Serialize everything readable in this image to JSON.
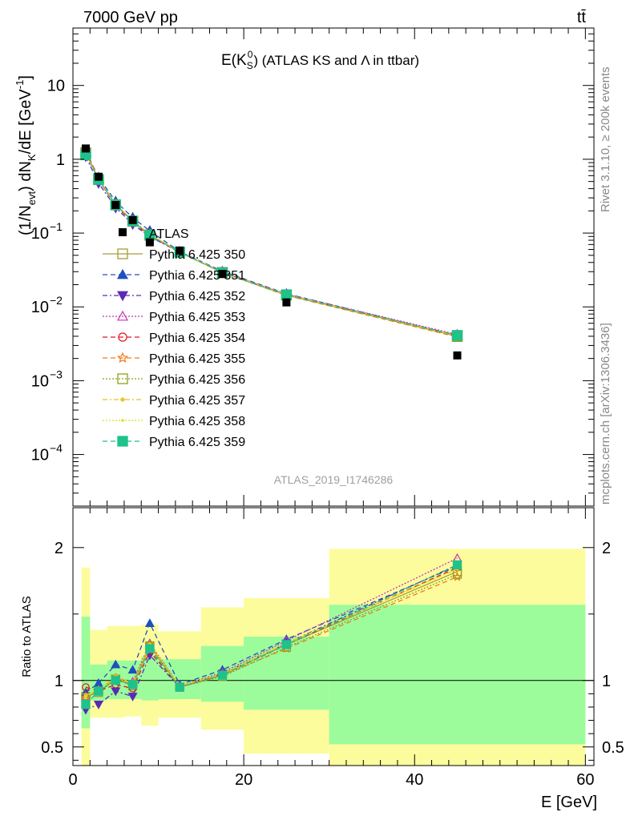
{
  "header": {
    "energy_label": "7000 GeV pp",
    "process_label": "tt̄",
    "side_note_top": "Rivet 3.1.10, ≥ 200k events",
    "side_note_bottom": "mcplots.cern.ch [arXiv:1306.3436]",
    "analysis_id": "ATLAS_2019_I1746286"
  },
  "chart_data": [
    {
      "type": "line",
      "title": "E(K_S^0) (ATLAS KS and Λ in ttbar)",
      "title_parts": {
        "pre": "E(K",
        "sub": "S",
        "sup": "0",
        "post": ") (ATLAS KS and Λ in ttbar)"
      },
      "ylabel": "(1/N_evt) dN_K/dE [GeV^-1]",
      "ylabel_parts": {
        "a": "(1/N",
        "b": "evt",
        "c": ") dN",
        "d": "K",
        "e": "/dE [GeV",
        "f": "-1",
        "g": "]"
      },
      "yscale": "log",
      "ylim": [
        2e-05,
        60
      ],
      "xlim": [
        0,
        61
      ],
      "y_ticks": [
        {
          "value": 10,
          "label": "10"
        },
        {
          "value": 1,
          "label": "1"
        },
        {
          "value": 0.1,
          "base": "10",
          "exp": "−1"
        },
        {
          "value": 0.01,
          "base": "10",
          "exp": "−2"
        },
        {
          "value": 0.001,
          "base": "10",
          "exp": "−3"
        },
        {
          "value": 0.0001,
          "base": "10",
          "exp": "−4"
        }
      ],
      "legend_position": "left-middle",
      "data": {
        "name": "ATLAS",
        "x": [
          1.5,
          3,
          5,
          7,
          9,
          12.5,
          17.5,
          25,
          45
        ],
        "y": [
          1.4,
          0.58,
          0.24,
          0.15,
          0.075,
          0.058,
          0.028,
          0.0115,
          0.0022
        ]
      },
      "series": [
        {
          "name": "Pythia 6.425 350",
          "color": "#a89c3c",
          "marker": "open-square",
          "dash": "solid"
        },
        {
          "name": "Pythia 6.425 351",
          "color": "#1f4fbf",
          "marker": "filled-triangle-up",
          "dash": "6,4"
        },
        {
          "name": "Pythia 6.425 352",
          "color": "#5a2ab5",
          "marker": "filled-triangle-down",
          "dash": "6,3,2,3"
        },
        {
          "name": "Pythia 6.425 353",
          "color": "#c235b0",
          "marker": "open-triangle-up",
          "dash": "2,2"
        },
        {
          "name": "Pythia 6.425 354",
          "color": "#e0141e",
          "marker": "open-circle",
          "dash": "6,4"
        },
        {
          "name": "Pythia 6.425 355",
          "color": "#f07a1e",
          "marker": "open-star",
          "dash": "6,4"
        },
        {
          "name": "Pythia 6.425 356",
          "color": "#8aa21e",
          "marker": "open-square",
          "dash": "2,2"
        },
        {
          "name": "Pythia 6.425 357",
          "color": "#e8c21a",
          "marker": "small-star",
          "dash": "6,3,2,3"
        },
        {
          "name": "Pythia 6.425 358",
          "color": "#d8e21e",
          "marker": "small-dot",
          "dash": "2,2"
        },
        {
          "name": "Pythia 6.425 359",
          "color": "#1ec28a",
          "marker": "filled-square",
          "dash": "6,4"
        }
      ],
      "ratios": [
        [
          0.88,
          0.91,
          1.01,
          0.96,
          1.26,
          0.95,
          1.05,
          1.27,
          1.82
        ],
        [
          0.91,
          0.98,
          1.12,
          1.08,
          1.43,
          0.97,
          1.08,
          1.31,
          1.86
        ],
        [
          0.78,
          0.82,
          0.92,
          0.88,
          1.19,
          0.95,
          1.05,
          1.28,
          1.87
        ],
        [
          0.88,
          0.93,
          1.02,
          0.99,
          1.28,
          0.96,
          1.06,
          1.3,
          1.92
        ],
        [
          0.95,
          0.92,
          0.97,
          0.94,
          1.22,
          0.95,
          1.04,
          1.27,
          1.85
        ],
        [
          0.87,
          0.93,
          1.02,
          0.97,
          1.27,
          0.95,
          1.04,
          1.24,
          1.78
        ],
        [
          0.87,
          0.92,
          1.01,
          0.97,
          1.26,
          0.95,
          1.03,
          1.25,
          1.8
        ],
        [
          0.89,
          0.93,
          1.03,
          0.98,
          1.27,
          0.96,
          1.05,
          1.28,
          1.84
        ],
        [
          0.88,
          0.93,
          1.02,
          0.98,
          1.27,
          0.96,
          1.05,
          1.28,
          1.84
        ],
        [
          0.82,
          0.92,
          1.0,
          0.97,
          1.24,
          0.95,
          1.04,
          1.27,
          1.87
        ]
      ]
    },
    {
      "type": "area",
      "ylabel": "Ratio to ATLAS",
      "xlabel": "E [GeV]",
      "ylim": [
        0.36,
        2.3
      ],
      "xlim": [
        0,
        61
      ],
      "x_ticks": [
        0,
        20,
        40,
        60
      ],
      "y_ticks": [
        0.5,
        1,
        2
      ],
      "bins": [
        {
          "lo": 1,
          "hi": 2,
          "inner": [
            0.64,
            1.48
          ],
          "outer": [
            0.36,
            1.85
          ]
        },
        {
          "lo": 2,
          "hi": 4,
          "inner": [
            0.85,
            1.12
          ],
          "outer": [
            0.72,
            1.38
          ]
        },
        {
          "lo": 4,
          "hi": 6,
          "inner": [
            0.86,
            1.15
          ],
          "outer": [
            0.72,
            1.41
          ]
        },
        {
          "lo": 6,
          "hi": 8,
          "inner": [
            0.86,
            1.15
          ],
          "outer": [
            0.73,
            1.41
          ]
        },
        {
          "lo": 8,
          "hi": 10,
          "inner": [
            0.85,
            1.18
          ],
          "outer": [
            0.66,
            1.42
          ]
        },
        {
          "lo": 10,
          "hi": 15,
          "inner": [
            0.86,
            1.16
          ],
          "outer": [
            0.72,
            1.37
          ]
        },
        {
          "lo": 15,
          "hi": 20,
          "inner": [
            0.84,
            1.26
          ],
          "outer": [
            0.63,
            1.55
          ]
        },
        {
          "lo": 20,
          "hi": 30,
          "inner": [
            0.78,
            1.33
          ],
          "outer": [
            0.45,
            1.62
          ]
        },
        {
          "lo": 30,
          "hi": 60,
          "inner": [
            0.52,
            1.57
          ],
          "outer": [
            0.36,
            1.99
          ]
        }
      ],
      "band_colors": {
        "inner": "#9cfc9c",
        "outer": "#fcfc9c"
      }
    }
  ]
}
